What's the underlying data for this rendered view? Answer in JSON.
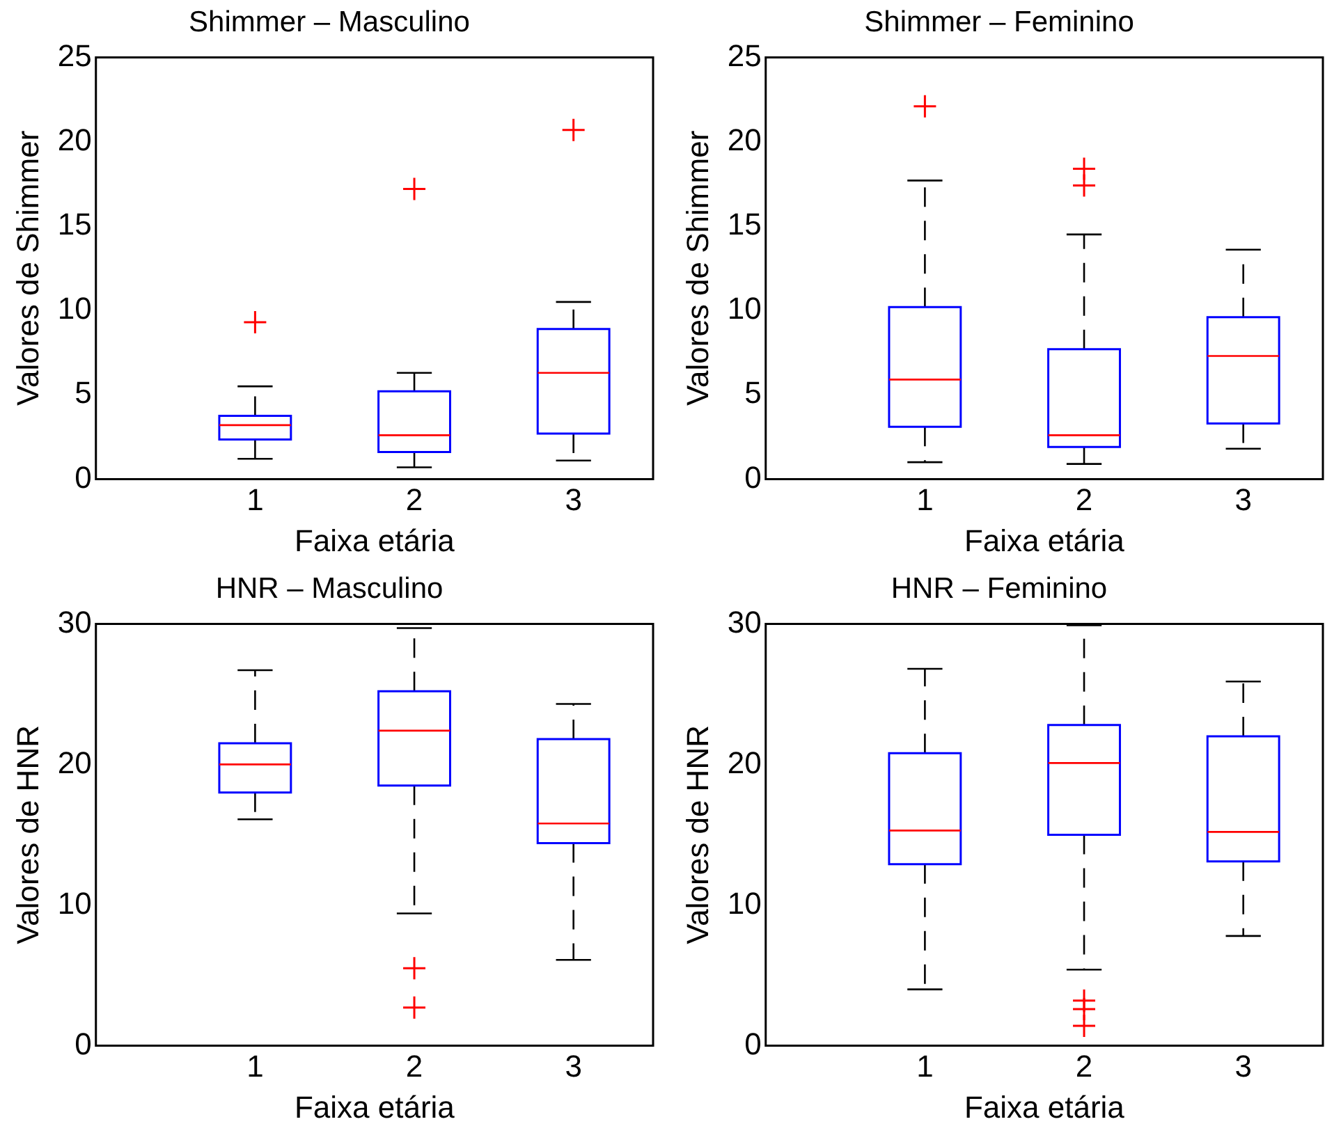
{
  "chart_data": [
    {
      "type": "box",
      "title": "Shimmer – Masculino",
      "xlabel": "Faixa etária",
      "ylabel": "Valores de Shimmer",
      "x": [
        1,
        2,
        3
      ],
      "xlim": [
        0,
        3.5
      ],
      "xticks": [
        1,
        2,
        3
      ],
      "ylim": [
        0,
        25
      ],
      "yticks": [
        0,
        5,
        10,
        15,
        20,
        25
      ],
      "grid": false,
      "legend": false,
      "marker": "cross",
      "line_style": "dashed",
      "series": [
        {
          "color": "#0000ff",
          "boxes": [
            {
              "low": 1.2,
              "q1": 2.35,
              "median": 3.2,
              "q3": 3.75,
              "high": 5.5,
              "outliers": [
                9.3
              ]
            },
            {
              "low": 0.7,
              "q1": 1.6,
              "median": 2.6,
              "q3": 5.2,
              "high": 6.3,
              "outliers": [
                17.2
              ]
            },
            {
              "low": 1.1,
              "q1": 2.7,
              "median": 6.3,
              "q3": 8.9,
              "high": 10.5,
              "outliers": [
                20.7
              ]
            }
          ]
        }
      ]
    },
    {
      "type": "box",
      "title": "Shimmer – Feminino",
      "xlabel": "Faixa etária",
      "ylabel": "Valores de Shimmer",
      "x": [
        1,
        2,
        3
      ],
      "xlim": [
        0,
        3.5
      ],
      "xticks": [
        1,
        2,
        3
      ],
      "ylim": [
        0,
        25
      ],
      "yticks": [
        0,
        5,
        10,
        15,
        20,
        25
      ],
      "grid": false,
      "legend": false,
      "marker": "cross",
      "line_style": "dashed",
      "series": [
        {
          "color": "#0000ff",
          "boxes": [
            {
              "low": 1.0,
              "q1": 3.1,
              "median": 5.9,
              "q3": 10.2,
              "high": 17.7,
              "outliers": [
                22.1
              ]
            },
            {
              "low": 0.9,
              "q1": 1.9,
              "median": 2.6,
              "q3": 7.7,
              "high": 14.5,
              "outliers": [
                18.4,
                17.4
              ]
            },
            {
              "low": 1.8,
              "q1": 3.3,
              "median": 7.3,
              "q3": 9.6,
              "high": 13.6
            }
          ]
        }
      ]
    },
    {
      "type": "box",
      "title": "HNR – Masculino",
      "xlabel": "Faixa etária",
      "ylabel": "Valores de HNR",
      "x": [
        1,
        2,
        3
      ],
      "xlim": [
        0,
        3.5
      ],
      "xticks": [
        1,
        2,
        3
      ],
      "ylim": [
        0,
        30
      ],
      "yticks": [
        0,
        10,
        20,
        30
      ],
      "grid": false,
      "legend": false,
      "marker": "cross",
      "line_style": "dashed",
      "series": [
        {
          "color": "#0000ff",
          "boxes": [
            {
              "low": 16.1,
              "q1": 18.0,
              "median": 20.0,
              "q3": 21.5,
              "high": 26.7
            },
            {
              "low": 9.4,
              "q1": 18.5,
              "median": 22.4,
              "q3": 25.2,
              "high": 29.7,
              "outliers": [
                5.5,
                2.7
              ]
            },
            {
              "low": 6.1,
              "q1": 14.4,
              "median": 15.8,
              "q3": 21.8,
              "high": 24.3
            }
          ]
        }
      ]
    },
    {
      "type": "box",
      "title": "HNR – Feminino",
      "xlabel": "Faixa etária",
      "ylabel": "Valores de HNR",
      "x": [
        1,
        2,
        3
      ],
      "xlim": [
        0,
        3.5
      ],
      "xticks": [
        1,
        2,
        3
      ],
      "ylim": [
        0,
        30
      ],
      "yticks": [
        0,
        10,
        20,
        30
      ],
      "grid": false,
      "legend": false,
      "marker": "cross",
      "line_style": "dashed",
      "series": [
        {
          "color": "#0000ff",
          "boxes": [
            {
              "low": 4.0,
              "q1": 12.9,
              "median": 15.3,
              "q3": 20.8,
              "high": 26.8
            },
            {
              "low": 5.4,
              "q1": 15.0,
              "median": 20.1,
              "q3": 22.8,
              "high": 29.9,
              "outliers": [
                3.2,
                2.6,
                1.4
              ]
            },
            {
              "low": 7.8,
              "q1": 13.1,
              "median": 15.2,
              "q3": 22.0,
              "high": 25.9
            }
          ]
        }
      ]
    }
  ]
}
